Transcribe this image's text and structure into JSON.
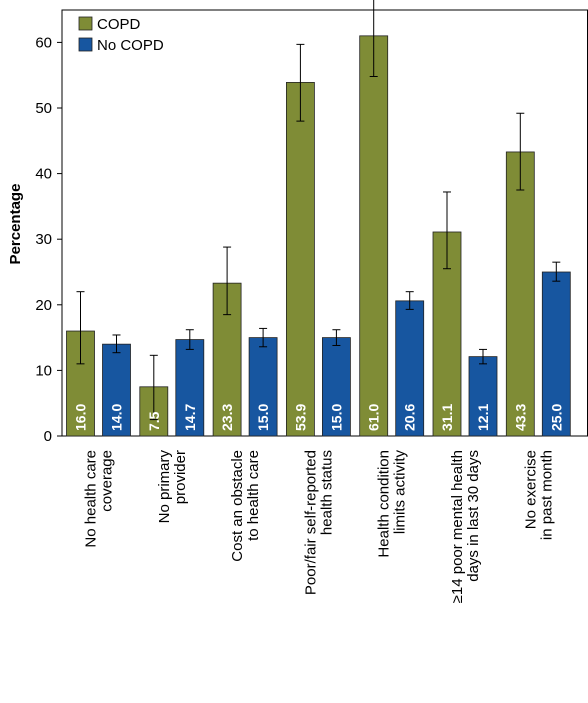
{
  "chart_data": {
    "type": "bar",
    "ylabel": "Percentage",
    "ylim": [
      0,
      75
    ],
    "yticks": [
      0,
      10,
      20,
      30,
      40,
      50,
      60,
      70
    ],
    "grid": false,
    "legend_placement": "top-left",
    "categories": [
      [
        "No health care",
        "coverage"
      ],
      [
        "No primary",
        "provider"
      ],
      [
        "Cost an obstacle",
        "to health care"
      ],
      [
        "Poor/fair self-reported",
        "health status"
      ],
      [
        "Health condition",
        "limits activity"
      ],
      [
        "≥14 poor mental health",
        "days in last 30 days"
      ],
      [
        "No exercise",
        "in past month"
      ]
    ],
    "series": [
      {
        "name": "COPD",
        "color": "#7f8c36",
        "values": [
          16.0,
          7.5,
          23.3,
          53.9,
          61.0,
          31.1,
          43.3
        ],
        "labels": [
          "16.0",
          "7.5",
          "23.3",
          "53.9",
          "61.0",
          "31.1",
          "43.3"
        ],
        "ci_low": [
          11.0,
          2.5,
          18.5,
          48.0,
          54.8,
          25.5,
          37.5
        ],
        "ci_high": [
          22.0,
          12.3,
          28.8,
          59.7,
          66.8,
          37.2,
          49.2
        ]
      },
      {
        "name": "No COPD",
        "color": "#1756a0",
        "values": [
          14.0,
          14.7,
          15.0,
          15.0,
          20.6,
          12.1,
          25.0
        ],
        "labels": [
          "14.0",
          "14.7",
          "15.0",
          "15.0",
          "20.6",
          "12.1",
          "25.0"
        ],
        "ci_low": [
          12.7,
          13.2,
          13.6,
          13.8,
          19.3,
          11.0,
          23.6
        ],
        "ci_high": [
          15.4,
          16.2,
          16.4,
          16.2,
          22.0,
          13.2,
          26.5
        ]
      }
    ]
  }
}
